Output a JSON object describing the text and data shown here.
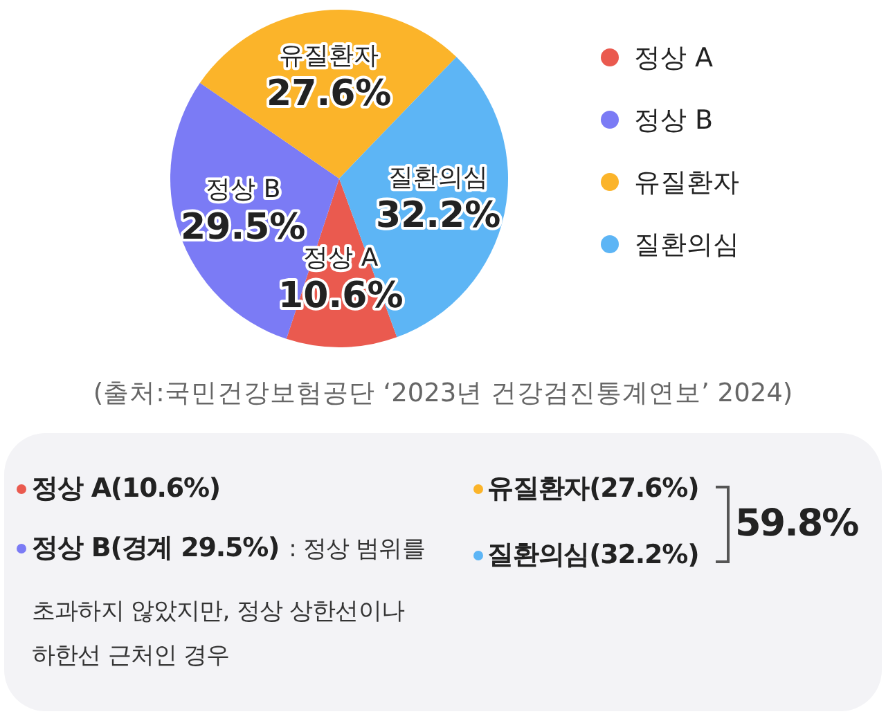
{
  "chart_data": {
    "type": "pie",
    "categories": [
      "정상 A",
      "정상 B",
      "유질환자",
      "질환의심"
    ],
    "values": [
      10.6,
      29.5,
      27.6,
      32.2
    ],
    "colors": [
      "#ea5a4f",
      "#7b7bf5",
      "#fbb42a",
      "#5db5f5"
    ],
    "value_labels": [
      "10.6%",
      "29.5%",
      "27.6%",
      "32.2%"
    ],
    "legend": "right",
    "annotations": [
      "(출처:국민건강보험공단 ‘2023년 건강검진통계연보’ 2024)",
      "정상 A(10.6%)",
      "정상 B(경계 29.5%)",
      ": 정상 범위를",
      "초과하지 않았지만, 정상 상한선이나 하한선 근처인 경우",
      "유질환자(27.6%)",
      "질환의심(32.2%)",
      "59.8%"
    ]
  }
}
